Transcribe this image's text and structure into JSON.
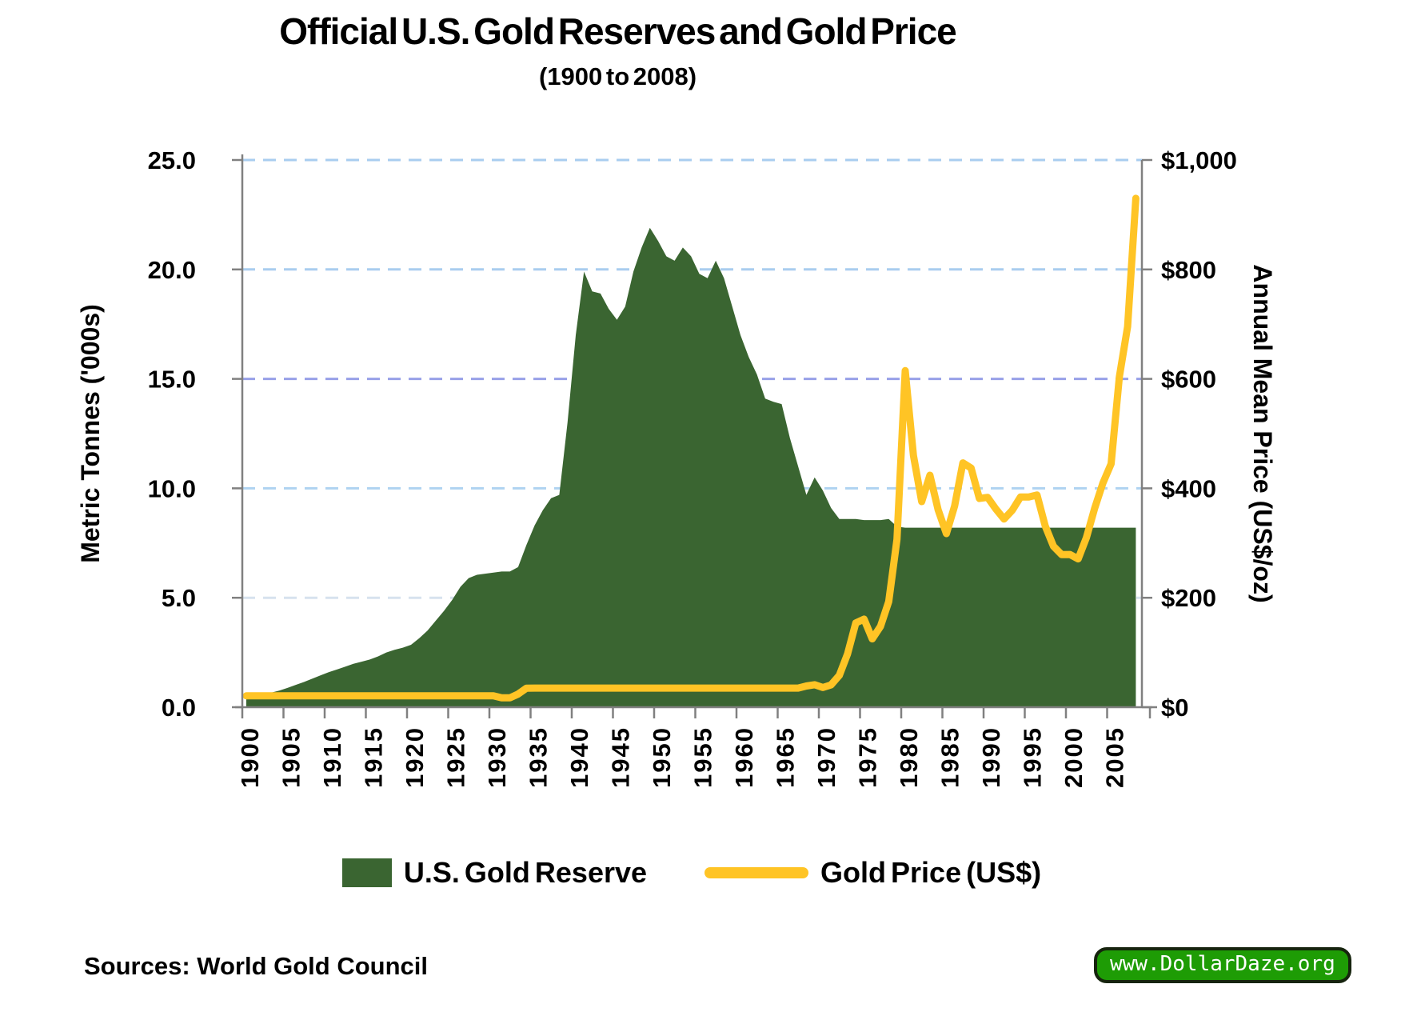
{
  "title": {
    "text": "Official U.S. Gold Reserves and Gold Price",
    "subtitle": "(1900 to 2008)"
  },
  "legend": {
    "items": [
      {
        "label": "U.S. Gold Reserve",
        "swatch": "area"
      },
      {
        "label": "Gold Price (US$)",
        "swatch": "line"
      }
    ]
  },
  "footer": {
    "sources": "Sources: World Gold Council",
    "badge": "www.DollarDaze.org"
  },
  "chart_data": {
    "type": "combo",
    "title": "Official U.S. Gold Reserves and Gold Price",
    "subtitle": "(1900 to 2008)",
    "axis_color": "#808080",
    "background": "#FFFFFF",
    "grid": {
      "style": "dashed",
      "lines": [
        {
          "value": 25,
          "color": "#A9CDEF"
        },
        {
          "value": 20,
          "color": "#A9CDEF"
        },
        {
          "value": 15,
          "color": "#98A0E8"
        },
        {
          "value": 10,
          "color": "#AFD3F1"
        },
        {
          "value": 5,
          "color": "#D7E2EE"
        }
      ]
    },
    "left_axis": {
      "title": "Metric Tonnes ('000s)",
      "range": [
        0,
        25
      ],
      "ticks": [
        {
          "value": 0,
          "label": "0.0"
        },
        {
          "value": 5,
          "label": "5.0"
        },
        {
          "value": 10,
          "label": "10.0"
        },
        {
          "value": 15,
          "label": "15.0"
        },
        {
          "value": 20,
          "label": "20.0"
        },
        {
          "value": 25,
          "label": "25.0"
        }
      ]
    },
    "right_axis": {
      "title": "Annual Mean Price (US$/oz)",
      "range": [
        0,
        1000
      ],
      "ticks": [
        {
          "value": 0,
          "label": "$0"
        },
        {
          "value": 200,
          "label": "$200"
        },
        {
          "value": 400,
          "label": "$400"
        },
        {
          "value": 600,
          "label": "$600"
        },
        {
          "value": 800,
          "label": "$800"
        },
        {
          "value": 1000,
          "label": "$1,000"
        }
      ]
    },
    "x_axis": {
      "tick_years": [
        1900,
        1905,
        1910,
        1915,
        1920,
        1925,
        1930,
        1935,
        1940,
        1945,
        1950,
        1955,
        1960,
        1965,
        1970,
        1975,
        1980,
        1985,
        1990,
        1995,
        2000,
        2005
      ]
    },
    "years": [
      1900,
      1901,
      1902,
      1903,
      1904,
      1905,
      1906,
      1907,
      1908,
      1909,
      1910,
      1911,
      1912,
      1913,
      1914,
      1915,
      1916,
      1917,
      1918,
      1919,
      1920,
      1921,
      1922,
      1923,
      1924,
      1925,
      1926,
      1927,
      1928,
      1929,
      1930,
      1931,
      1932,
      1933,
      1934,
      1935,
      1936,
      1937,
      1938,
      1939,
      1940,
      1941,
      1942,
      1943,
      1944,
      1945,
      1946,
      1947,
      1948,
      1949,
      1950,
      1951,
      1952,
      1953,
      1954,
      1955,
      1956,
      1957,
      1958,
      1959,
      1960,
      1961,
      1962,
      1963,
      1964,
      1965,
      1966,
      1967,
      1968,
      1969,
      1970,
      1971,
      1972,
      1973,
      1974,
      1975,
      1976,
      1977,
      1978,
      1979,
      1980,
      1981,
      1982,
      1983,
      1984,
      1985,
      1986,
      1987,
      1988,
      1989,
      1990,
      1991,
      1992,
      1993,
      1994,
      1995,
      1996,
      1997,
      1998,
      1999,
      2000,
      2001,
      2002,
      2003,
      2004,
      2005,
      2006,
      2007,
      2008
    ],
    "series": [
      {
        "name": "U.S. Gold Reserve",
        "type": "area",
        "axis": "left",
        "unit": "thousand metric tonnes",
        "color": "#3A6531",
        "values": [
          0.4,
          0.5,
          0.58,
          0.66,
          0.76,
          0.88,
          1.02,
          1.15,
          1.3,
          1.45,
          1.6,
          1.72,
          1.85,
          1.98,
          2.08,
          2.18,
          2.32,
          2.5,
          2.62,
          2.72,
          2.85,
          3.15,
          3.5,
          3.95,
          4.4,
          4.9,
          5.5,
          5.9,
          6.05,
          6.1,
          6.15,
          6.2,
          6.2,
          6.4,
          7.4,
          8.3,
          9.0,
          9.55,
          9.7,
          13.0,
          17.0,
          19.9,
          19.0,
          18.9,
          18.2,
          17.7,
          18.3,
          19.9,
          21.0,
          21.9,
          21.3,
          20.6,
          20.4,
          21.0,
          20.6,
          19.8,
          19.6,
          20.4,
          19.6,
          18.3,
          17.0,
          16.0,
          15.2,
          14.1,
          13.95,
          13.85,
          12.3,
          11.0,
          9.7,
          10.5,
          9.9,
          9.1,
          8.6,
          8.6,
          8.6,
          8.55,
          8.55,
          8.55,
          8.6,
          8.25,
          8.2,
          8.2,
          8.2,
          8.2,
          8.2,
          8.2,
          8.2,
          8.2,
          8.2,
          8.2,
          8.2,
          8.2,
          8.2,
          8.2,
          8.2,
          8.2,
          8.2,
          8.2,
          8.2,
          8.2,
          8.2,
          8.2,
          8.2,
          8.2,
          8.2,
          8.2,
          8.2,
          8.2,
          8.2
        ]
      },
      {
        "name": "Gold Price (US$)",
        "type": "line",
        "axis": "right",
        "unit": "US$ per oz",
        "color": "#FFC425",
        "values": [
          20.7,
          20.7,
          20.7,
          20.7,
          20.7,
          20.7,
          20.7,
          20.7,
          20.7,
          20.7,
          20.7,
          20.7,
          20.7,
          20.7,
          20.7,
          20.7,
          20.7,
          20.7,
          20.7,
          20.7,
          20.7,
          20.7,
          20.7,
          20.7,
          20.7,
          20.7,
          20.7,
          20.7,
          20.7,
          20.7,
          20.7,
          17.1,
          17.1,
          24.0,
          34.7,
          35.0,
          35.0,
          35.0,
          35.0,
          35.0,
          35.0,
          35.0,
          35.0,
          35.0,
          35.0,
          35.0,
          35.0,
          35.0,
          35.0,
          35.0,
          35.0,
          35.0,
          35.0,
          35.0,
          35.0,
          35.0,
          35.0,
          35.0,
          35.0,
          35.0,
          35.0,
          35.0,
          35.0,
          35.0,
          35.0,
          35.0,
          35.0,
          35.0,
          38.7,
          41.1,
          35.9,
          40.8,
          58.2,
          97.3,
          154.0,
          160.9,
          124.8,
          147.7,
          193.2,
          306.7,
          615.0,
          460.0,
          375.8,
          424.0,
          360.5,
          317.3,
          367.9,
          446.5,
          437.0,
          381.4,
          383.5,
          362.3,
          343.9,
          360.0,
          384.2,
          384.1,
          387.9,
          331.1,
          294.1,
          278.8,
          279.1,
          271.0,
          309.9,
          363.5,
          409.5,
          444.9,
          603.8,
          695.4,
          930.0
        ]
      }
    ]
  }
}
